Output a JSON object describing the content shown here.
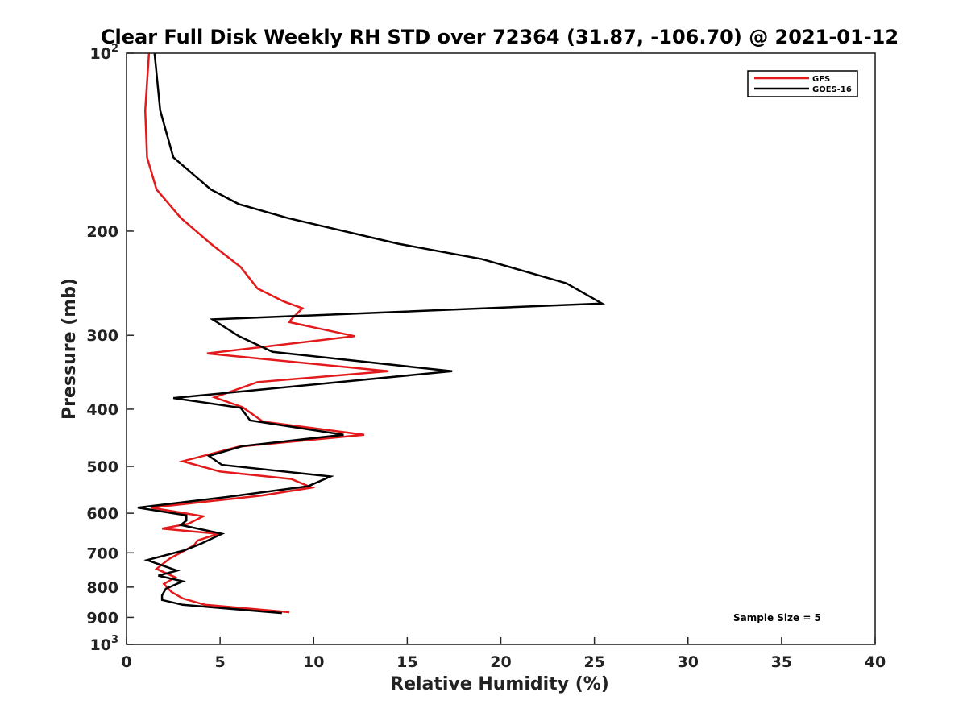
{
  "colors": {
    "gfs": "#e31a1c",
    "goes": "#000000",
    "axis": "#262626"
  },
  "chart_data": {
    "type": "line",
    "title": "Clear Full Disk Weekly RH STD over 72364 (31.87, -106.70) @ 2021-01-12",
    "xlabel": "Relative Humidity (%)",
    "ylabel": "Pressure (mb)",
    "xlim": [
      0,
      40
    ],
    "ylim": [
      100,
      1000
    ],
    "y_scale": "log",
    "y_reversed": true,
    "x_ticks": [
      "0",
      "5",
      "10",
      "15",
      "20",
      "25",
      "30",
      "35",
      "40"
    ],
    "y_ticks": [
      {
        "value": 100,
        "base": "10",
        "exp": "2"
      },
      {
        "value": 200,
        "label": "200"
      },
      {
        "value": 300,
        "label": "300"
      },
      {
        "value": 400,
        "label": "400"
      },
      {
        "value": 500,
        "label": "500"
      },
      {
        "value": 600,
        "label": "600"
      },
      {
        "value": 700,
        "label": "700"
      },
      {
        "value": 800,
        "label": "800"
      },
      {
        "value": 900,
        "label": "900"
      },
      {
        "value": 1000,
        "base": "10",
        "exp": "3"
      }
    ],
    "legend_position": "top-right",
    "annotation": "Sample Size = 5",
    "series": [
      {
        "name": "GFS",
        "color": "#e31a1c",
        "points": [
          [
            1.2,
            100
          ],
          [
            1.0,
            125
          ],
          [
            1.1,
            150
          ],
          [
            1.6,
            170
          ],
          [
            2.9,
            190
          ],
          [
            4.5,
            210
          ],
          [
            6.1,
            230
          ],
          [
            7.0,
            250
          ],
          [
            8.4,
            263
          ],
          [
            9.4,
            270
          ],
          [
            8.8,
            282
          ],
          [
            8.7,
            285
          ],
          [
            12.2,
            301
          ],
          [
            4.3,
            322
          ],
          [
            14.0,
            345
          ],
          [
            7.0,
            360
          ],
          [
            4.7,
            382
          ],
          [
            6.2,
            397
          ],
          [
            7.3,
            420
          ],
          [
            12.7,
            442
          ],
          [
            6.0,
            463
          ],
          [
            3.0,
            490
          ],
          [
            5.0,
            510
          ],
          [
            8.8,
            525
          ],
          [
            9.9,
            543
          ],
          [
            7.2,
            560
          ],
          [
            1.3,
            587
          ],
          [
            4.1,
            607
          ],
          [
            3.3,
            625
          ],
          [
            1.9,
            637
          ],
          [
            4.9,
            650
          ],
          [
            3.8,
            667
          ],
          [
            3.6,
            680
          ],
          [
            2.3,
            716
          ],
          [
            1.6,
            745
          ],
          [
            2.6,
            770
          ],
          [
            2.0,
            790
          ],
          [
            2.4,
            815
          ],
          [
            3.0,
            836
          ],
          [
            4.2,
            857
          ],
          [
            8.7,
            882
          ]
        ]
      },
      {
        "name": "GOES-16",
        "color": "#000000",
        "points": [
          [
            1.5,
            100
          ],
          [
            1.8,
            125
          ],
          [
            2.5,
            150
          ],
          [
            4.5,
            170
          ],
          [
            6.0,
            180
          ],
          [
            8.6,
            190
          ],
          [
            14.5,
            210
          ],
          [
            19.0,
            223
          ],
          [
            23.5,
            245
          ],
          [
            25.4,
            265
          ],
          [
            4.6,
            282
          ],
          [
            6.0,
            301
          ],
          [
            7.8,
            320
          ],
          [
            17.4,
            345
          ],
          [
            2.5,
            383
          ],
          [
            6.1,
            398
          ],
          [
            6.6,
            418
          ],
          [
            11.6,
            442
          ],
          [
            6.2,
            462
          ],
          [
            4.4,
            480
          ],
          [
            5.1,
            497
          ],
          [
            10.9,
            520
          ],
          [
            9.7,
            540
          ],
          [
            5.4,
            563
          ],
          [
            0.6,
            587
          ],
          [
            3.2,
            605
          ],
          [
            3.2,
            617
          ],
          [
            2.9,
            628
          ],
          [
            5.1,
            650
          ],
          [
            4.0,
            675
          ],
          [
            3.1,
            693
          ],
          [
            1.1,
            720
          ],
          [
            2.7,
            750
          ],
          [
            1.7,
            765
          ],
          [
            3.0,
            782
          ],
          [
            2.1,
            805
          ],
          [
            1.9,
            826
          ],
          [
            1.9,
            841
          ],
          [
            3.0,
            857
          ],
          [
            8.3,
            885
          ]
        ]
      }
    ]
  }
}
